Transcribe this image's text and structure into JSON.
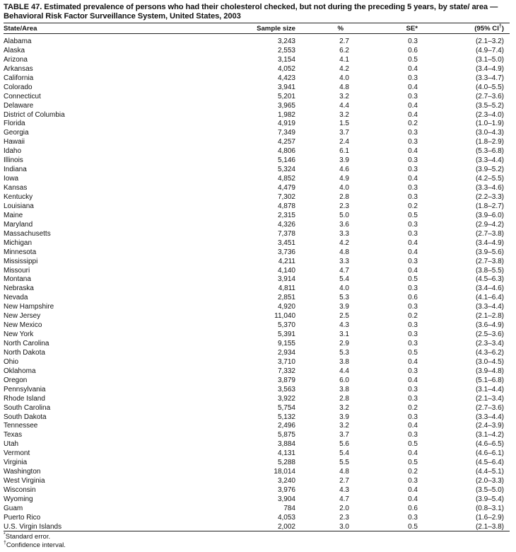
{
  "title": "TABLE 47. Estimated prevalence of persons who had their cholesterol checked, but not during the preceding 5 years, by state/ area — Behavioral Risk Factor Surveillance System, United States, 2003",
  "columns": {
    "state": "State/Area",
    "sample": "Sample size",
    "pct": "%",
    "se": "SE",
    "se_mark": "*",
    "ci": "(95% CI",
    "ci_mark": "†",
    "ci_close": ")"
  },
  "rows": [
    [
      "Alabama",
      "3,243",
      "2.7",
      "0.3",
      "(2.1–3.2)"
    ],
    [
      "Alaska",
      "2,553",
      "6.2",
      "0.6",
      "(4.9–7.4)"
    ],
    [
      "Arizona",
      "3,154",
      "4.1",
      "0.5",
      "(3.1–5.0)"
    ],
    [
      "Arkansas",
      "4,052",
      "4.2",
      "0.4",
      "(3.4–4.9)"
    ],
    [
      "California",
      "4,423",
      "4.0",
      "0.3",
      "(3.3–4.7)"
    ],
    [
      "Colorado",
      "3,941",
      "4.8",
      "0.4",
      "(4.0–5.5)"
    ],
    [
      "Connecticut",
      "5,201",
      "3.2",
      "0.3",
      "(2.7–3.6)"
    ],
    [
      "Delaware",
      "3,965",
      "4.4",
      "0.4",
      "(3.5–5.2)"
    ],
    [
      "District of Columbia",
      "1,982",
      "3.2",
      "0.4",
      "(2.3–4.0)"
    ],
    [
      "Florida",
      "4,919",
      "1.5",
      "0.2",
      "(1.0–1.9)"
    ],
    [
      "Georgia",
      "7,349",
      "3.7",
      "0.3",
      "(3.0–4.3)"
    ],
    [
      "Hawaii",
      "4,257",
      "2.4",
      "0.3",
      "(1.8–2.9)"
    ],
    [
      "Idaho",
      "4,806",
      "6.1",
      "0.4",
      "(5.3–6.8)"
    ],
    [
      "Illinois",
      "5,146",
      "3.9",
      "0.3",
      "(3.3–4.4)"
    ],
    [
      "Indiana",
      "5,324",
      "4.6",
      "0.3",
      "(3.9–5.2)"
    ],
    [
      "Iowa",
      "4,852",
      "4.9",
      "0.4",
      "(4.2–5.5)"
    ],
    [
      "Kansas",
      "4,479",
      "4.0",
      "0.3",
      "(3.3–4.6)"
    ],
    [
      "Kentucky",
      "7,302",
      "2.8",
      "0.3",
      "(2.2–3.3)"
    ],
    [
      "Louisiana",
      "4,878",
      "2.3",
      "0.2",
      "(1.8–2.7)"
    ],
    [
      "Maine",
      "2,315",
      "5.0",
      "0.5",
      "(3.9–6.0)"
    ],
    [
      "Maryland",
      "4,326",
      "3.6",
      "0.3",
      "(2.9–4.2)"
    ],
    [
      "Massachusetts",
      "7,378",
      "3.3",
      "0.3",
      "(2.7–3.8)"
    ],
    [
      "Michigan",
      "3,451",
      "4.2",
      "0.4",
      "(3.4–4.9)"
    ],
    [
      "Minnesota",
      "3,736",
      "4.8",
      "0.4",
      "(3.9–5.6)"
    ],
    [
      "Mississippi",
      "4,211",
      "3.3",
      "0.3",
      "(2.7–3.8)"
    ],
    [
      "Missouri",
      "4,140",
      "4.7",
      "0.4",
      "(3.8–5.5)"
    ],
    [
      "Montana",
      "3,914",
      "5.4",
      "0.5",
      "(4.5–6.3)"
    ],
    [
      "Nebraska",
      "4,811",
      "4.0",
      "0.3",
      "(3.4–4.6)"
    ],
    [
      "Nevada",
      "2,851",
      "5.3",
      "0.6",
      "(4.1–6.4)"
    ],
    [
      "New Hampshire",
      "4,920",
      "3.9",
      "0.3",
      "(3.3–4.4)"
    ],
    [
      "New Jersey",
      "11,040",
      "2.5",
      "0.2",
      "(2.1–2.8)"
    ],
    [
      "New Mexico",
      "5,370",
      "4.3",
      "0.3",
      "(3.6–4.9)"
    ],
    [
      "New York",
      "5,391",
      "3.1",
      "0.3",
      "(2.5–3.6)"
    ],
    [
      "North Carolina",
      "9,155",
      "2.9",
      "0.3",
      "(2.3–3.4)"
    ],
    [
      "North Dakota",
      "2,934",
      "5.3",
      "0.5",
      "(4.3–6.2)"
    ],
    [
      "Ohio",
      "3,710",
      "3.8",
      "0.4",
      "(3.0–4.5)"
    ],
    [
      "Oklahoma",
      "7,332",
      "4.4",
      "0.3",
      "(3.9–4.8)"
    ],
    [
      "Oregon",
      "3,879",
      "6.0",
      "0.4",
      "(5.1–6.8)"
    ],
    [
      "Pennsylvania",
      "3,563",
      "3.8",
      "0.3",
      "(3.1–4.4)"
    ],
    [
      "Rhode Island",
      "3,922",
      "2.8",
      "0.3",
      "(2.1–3.4)"
    ],
    [
      "South Carolina",
      "5,754",
      "3.2",
      "0.2",
      "(2.7–3.6)"
    ],
    [
      "South Dakota",
      "5,132",
      "3.9",
      "0.3",
      "(3.3–4.4)"
    ],
    [
      "Tennessee",
      "2,496",
      "3.2",
      "0.4",
      "(2.4–3.9)"
    ],
    [
      "Texas",
      "5,875",
      "3.7",
      "0.3",
      "(3.1–4.2)"
    ],
    [
      "Utah",
      "3,884",
      "5.6",
      "0.5",
      "(4.6–6.5)"
    ],
    [
      "Vermont",
      "4,131",
      "5.4",
      "0.4",
      "(4.6–6.1)"
    ],
    [
      "Virginia",
      "5,288",
      "5.5",
      "0.5",
      "(4.5–6.4)"
    ],
    [
      "Washington",
      "18,014",
      "4.8",
      "0.2",
      "(4.4–5.1)"
    ],
    [
      "West Virginia",
      "3,240",
      "2.7",
      "0.3",
      "(2.0–3.3)"
    ],
    [
      "Wisconsin",
      "3,976",
      "4.3",
      "0.4",
      "(3.5–5.0)"
    ],
    [
      "Wyoming",
      "3,904",
      "4.7",
      "0.4",
      "(3.9–5.4)"
    ],
    [
      "Guam",
      "784",
      "2.0",
      "0.6",
      "(0.8–3.1)"
    ],
    [
      "Puerto Rico",
      "4,053",
      "2.3",
      "0.3",
      "(1.6–2.9)"
    ],
    [
      "U.S. Virgin Islands",
      "2,002",
      "3.0",
      "0.5",
      "(2.1–3.8)"
    ]
  ],
  "footnotes": [
    {
      "mark": "*",
      "text": "Standard error."
    },
    {
      "mark": "†",
      "text": "Confidence interval."
    }
  ]
}
